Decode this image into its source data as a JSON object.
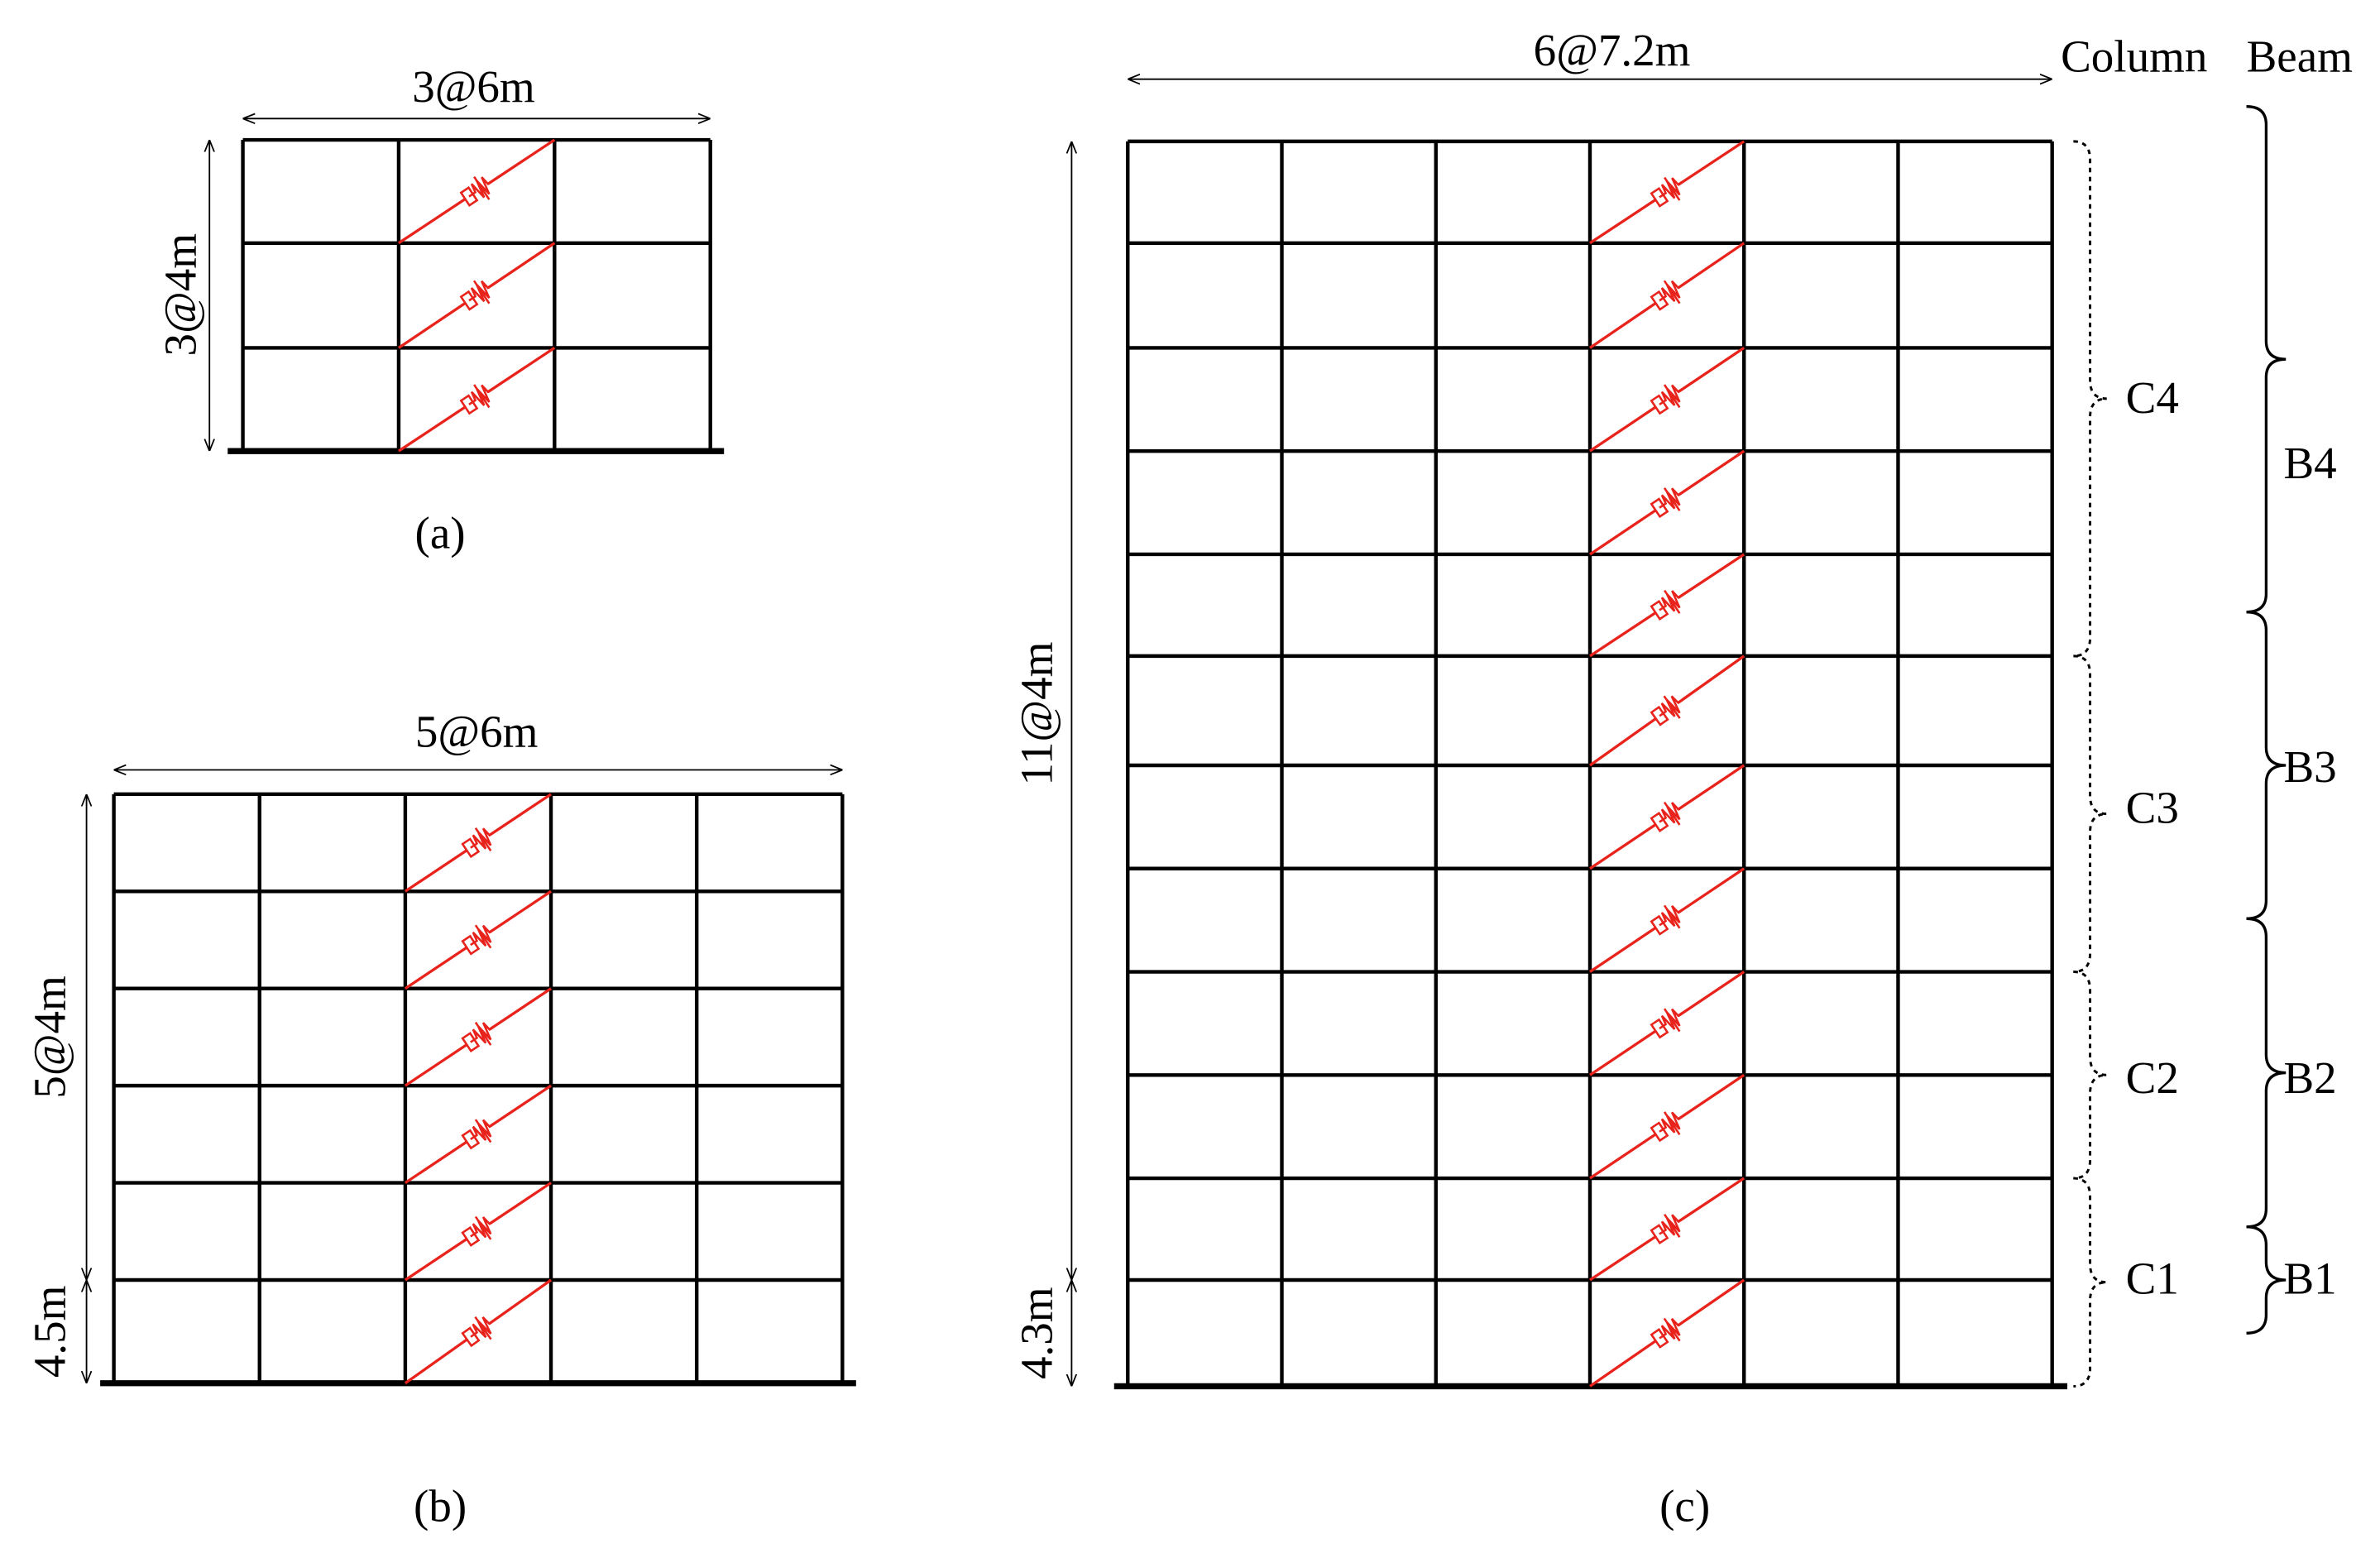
{
  "panels": [
    {
      "label": "(a)",
      "width_dim": "3@6m",
      "height_dims": [
        "3@4m"
      ]
    },
    {
      "label": "(b)",
      "width_dim": "5@6m",
      "height_dims": [
        "5@4m",
        "4.5m"
      ]
    },
    {
      "label": "(c)",
      "width_dim": "6@7.2m",
      "height_dims": [
        "11@4m",
        "4.3m"
      ]
    }
  ],
  "groups": {
    "column_header": "Column",
    "beam_header": "Beam",
    "columns": [
      "C4",
      "C3",
      "C2",
      "C1"
    ],
    "beams": [
      "B4",
      "B3",
      "B2",
      "B1"
    ]
  }
}
